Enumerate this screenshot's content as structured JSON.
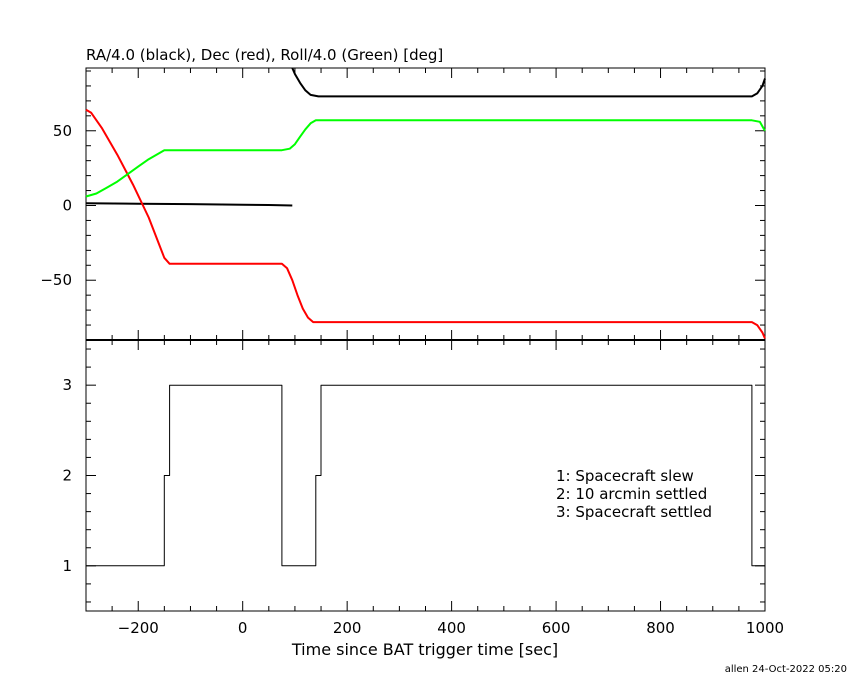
{
  "footer": "allen 24-Oct-2022 05:20",
  "colors": {
    "ra": "#000000",
    "dec": "#ff0000",
    "roll": "#00ff00",
    "axis": "#000000"
  },
  "chart_data": [
    {
      "type": "line",
      "title": "RA/4.0 (black), Dec (red), Roll/4.0 (Green) [deg]",
      "xlim": [
        -300,
        1000
      ],
      "ylim": [
        -90,
        92
      ],
      "xticks": [
        -200,
        0,
        200,
        400,
        600,
        800,
        1000
      ],
      "yticks": [
        -50,
        0,
        50
      ],
      "ytick_labels": [
        "−50",
        "0",
        "50"
      ],
      "series": [
        {
          "key": "ra_a",
          "color": "#000000",
          "x": [
            -300,
            -200,
            -100,
            0,
            50,
            95
          ],
          "y": [
            1.5,
            1.2,
            0.9,
            0.5,
            0.3,
            0.0
          ]
        },
        {
          "key": "ra_b",
          "color": "#000000",
          "x": [
            95,
            100,
            110,
            120,
            130,
            145,
            200,
            340,
            600,
            900,
            975,
            985,
            995,
            1000
          ],
          "y": [
            92,
            88,
            82,
            77,
            74,
            73,
            73,
            73,
            73,
            73,
            73,
            75,
            80,
            85
          ]
        },
        {
          "key": "dec",
          "color": "#ff0000",
          "x": [
            -300,
            -290,
            -270,
            -240,
            -210,
            -180,
            -160,
            -150,
            -140,
            -100,
            0,
            75,
            85,
            95,
            105,
            115,
            125,
            135,
            145,
            200,
            400,
            600,
            800,
            975,
            985,
            995,
            1000
          ],
          "y": [
            64,
            62,
            52,
            34,
            14,
            -8,
            -26,
            -35,
            -39,
            -39,
            -39,
            -39,
            -42,
            -50,
            -60,
            -69,
            -75,
            -78,
            -78,
            -78,
            -78,
            -78,
            -78,
            -78,
            -80,
            -85,
            -89
          ]
        },
        {
          "key": "roll",
          "color": "#00ff00",
          "x": [
            -300,
            -280,
            -260,
            -240,
            -220,
            -200,
            -180,
            -160,
            -150,
            -140,
            0,
            75,
            90,
            100,
            110,
            120,
            130,
            140,
            150,
            200,
            400,
            600,
            800,
            975,
            990,
            1000
          ],
          "y": [
            6,
            8,
            12,
            16,
            21,
            26,
            31,
            35,
            37,
            37,
            37,
            37,
            38,
            41,
            46,
            51,
            55,
            57,
            57,
            57,
            57,
            57,
            57,
            57,
            56,
            50
          ]
        }
      ]
    },
    {
      "type": "line",
      "xlabel": "Time since BAT trigger time [sec]",
      "xlim": [
        -300,
        1000
      ],
      "ylim": [
        0.5,
        3.5
      ],
      "xticks": [
        -200,
        0,
        200,
        400,
        600,
        800,
        1000
      ],
      "xtick_labels": [
        "−200",
        "0",
        "200",
        "400",
        "600",
        "800",
        "1000"
      ],
      "yticks": [
        1,
        2,
        3
      ],
      "series": [
        {
          "key": "state",
          "color": "#000000",
          "step": true,
          "x": [
            -300,
            -150,
            -150,
            -140,
            -140,
            75,
            75,
            140,
            140,
            150,
            150,
            975,
            975,
            1000
          ],
          "y": [
            1,
            1,
            2,
            2,
            3,
            3,
            1,
            1,
            2,
            2,
            3,
            3,
            1,
            1
          ]
        }
      ],
      "annotations": [
        "1: Spacecraft slew",
        "2: 10 arcmin settled",
        "3: Spacecraft settled"
      ]
    }
  ]
}
